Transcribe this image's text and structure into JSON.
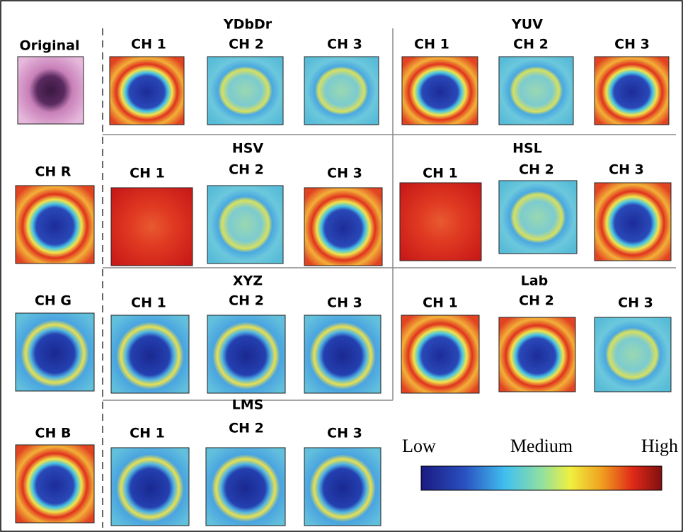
{
  "left": [
    {
      "label": "Original"
    },
    {
      "label": "CH R"
    },
    {
      "label": "CH G"
    },
    {
      "label": "CH B"
    }
  ],
  "groups": [
    {
      "title": "YDbDr",
      "channels": [
        "CH 1",
        "CH 2",
        "CH 3"
      ]
    },
    {
      "title": "YUV",
      "channels": [
        "CH 1",
        "CH 2",
        "CH 3"
      ]
    },
    {
      "title": "HSV",
      "channels": [
        "CH 1",
        "CH 2",
        "CH 3"
      ]
    },
    {
      "title": "HSL",
      "channels": [
        "CH 1",
        "CH 2",
        "CH 3"
      ]
    },
    {
      "title": "XYZ",
      "channels": [
        "CH 1",
        "CH 2",
        "CH 3"
      ]
    },
    {
      "title": "Lab",
      "channels": [
        "CH 1",
        "CH 2",
        "CH 3"
      ]
    },
    {
      "title": "LMS",
      "channels": [
        "CH 1",
        "CH 2",
        "CH 3"
      ]
    }
  ],
  "legend": {
    "low": "Low",
    "medium": "Medium",
    "high": "High"
  }
}
